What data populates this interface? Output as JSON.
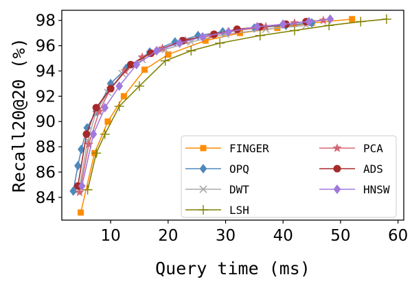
{
  "chart_data": {
    "type": "line",
    "title": "",
    "xlabel": "Query time (ms)",
    "ylabel": "Recall20@20 (%)",
    "xlim": [
      1.5,
      61
    ],
    "ylim": [
      82.2,
      98.8
    ],
    "xticks": [
      10,
      20,
      30,
      40,
      50,
      60
    ],
    "yticks": [
      84,
      86,
      88,
      90,
      92,
      94,
      96,
      98
    ],
    "legend_position": "lower-right",
    "series": [
      {
        "name": "FINGER",
        "color": "#ff8c00",
        "marker": "square",
        "x": [
          4.8,
          7.2,
          9.5,
          12.3,
          15.9,
          20.0,
          26.5,
          32.5,
          39.0,
          45.0,
          52.0
        ],
        "y": [
          82.8,
          87.5,
          90.0,
          92.0,
          94.1,
          95.3,
          96.4,
          97.0,
          97.4,
          97.8,
          98.1
        ]
      },
      {
        "name": "OPQ",
        "color": "#4f88bb",
        "marker": "diamond",
        "x": [
          3.5,
          4.3,
          4.9,
          5.9,
          7.5,
          10.0,
          12.7,
          16.8,
          21.2,
          25.2,
          29.5,
          35.0,
          40.5,
          45.0
        ],
        "y": [
          84.5,
          86.5,
          87.8,
          89.5,
          90.8,
          93.0,
          94.2,
          95.5,
          96.3,
          96.8,
          97.1,
          97.4,
          97.6,
          97.8
        ]
      },
      {
        "name": "DWT",
        "color": "#aaaaaa",
        "marker": "x",
        "x": [
          4.5,
          6.0,
          7.5,
          9.5,
          12.0,
          15.5,
          19.5,
          24.0,
          30.0,
          37.0,
          44.0
        ],
        "y": [
          84.6,
          88.5,
          90.8,
          92.3,
          93.8,
          94.9,
          95.7,
          96.3,
          96.9,
          97.3,
          97.6
        ]
      },
      {
        "name": "LSH",
        "color": "#808000",
        "marker": "plus",
        "x": [
          6.0,
          7.5,
          9.0,
          11.5,
          15.0,
          19.5,
          24.0,
          29.0,
          36.0,
          42.0,
          48.0,
          53.5,
          58.0
        ],
        "y": [
          84.6,
          87.5,
          89.0,
          91.2,
          92.8,
          94.8,
          95.6,
          96.2,
          96.8,
          97.2,
          97.6,
          97.9,
          98.1
        ]
      },
      {
        "name": "PCA",
        "color": "#d26672",
        "marker": "star",
        "x": [
          4.6,
          6.2,
          8.0,
          10.0,
          12.5,
          15.5,
          19.0,
          23.0,
          27.5,
          32.0,
          37.0,
          42.0,
          47.0
        ],
        "y": [
          84.4,
          88.2,
          90.8,
          92.6,
          94.0,
          95.1,
          95.8,
          96.4,
          96.8,
          97.2,
          97.5,
          97.8,
          98.0
        ]
      },
      {
        "name": "ADS",
        "color": "#a52a2a",
        "marker": "circle",
        "x": [
          4.3,
          5.8,
          7.5,
          10.0,
          13.5,
          17.0,
          22.5,
          28.0,
          32.0,
          36.0,
          40.5,
          44.0
        ],
        "y": [
          84.9,
          89.0,
          91.1,
          92.6,
          94.5,
          95.4,
          96.4,
          96.9,
          97.3,
          97.5,
          97.7,
          97.9
        ]
      },
      {
        "name": "HNSW",
        "color": "#a178dc",
        "marker": "diamond",
        "x": [
          5.0,
          7.0,
          9.0,
          11.5,
          14.5,
          18.0,
          22.0,
          26.0,
          30.5,
          35.5,
          40.0,
          44.5,
          48.2
        ],
        "y": [
          84.9,
          89.0,
          91.1,
          92.8,
          94.5,
          95.6,
          96.2,
          96.7,
          97.1,
          97.5,
          97.7,
          97.9,
          98.1
        ]
      }
    ]
  }
}
